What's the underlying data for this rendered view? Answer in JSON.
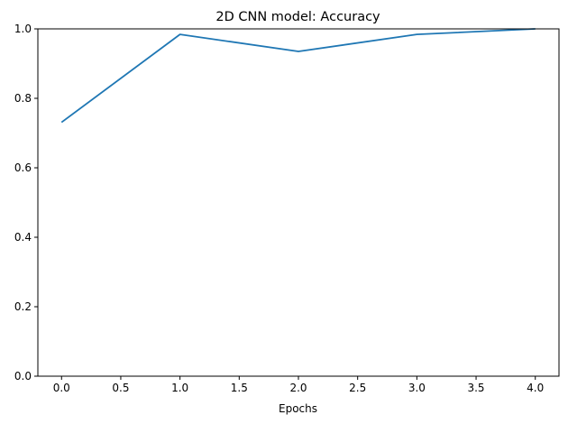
{
  "chart_data": {
    "type": "line",
    "title": "2D CNN model: Accuracy",
    "xlabel": "Epochs",
    "ylabel": "",
    "xlim": [
      -0.2,
      4.2
    ],
    "ylim": [
      0.0,
      1.0
    ],
    "x_ticks": [
      0.0,
      0.5,
      1.0,
      1.5,
      2.0,
      2.5,
      3.0,
      3.5,
      4.0
    ],
    "x_tick_labels": [
      "0.0",
      "0.5",
      "1.0",
      "1.5",
      "2.0",
      "2.5",
      "3.0",
      "3.5",
      "4.0"
    ],
    "y_ticks": [
      0.0,
      0.2,
      0.4,
      0.6,
      0.8,
      1.0
    ],
    "y_tick_labels": [
      "0.0",
      "0.2",
      "0.4",
      "0.6",
      "0.8",
      "1.0"
    ],
    "grid": false,
    "series": [
      {
        "color": "#1f77b4",
        "x": [
          0,
          1,
          2,
          3,
          4
        ],
        "y": [
          0.731,
          0.984,
          0.935,
          0.984,
          1.0
        ]
      }
    ]
  }
}
